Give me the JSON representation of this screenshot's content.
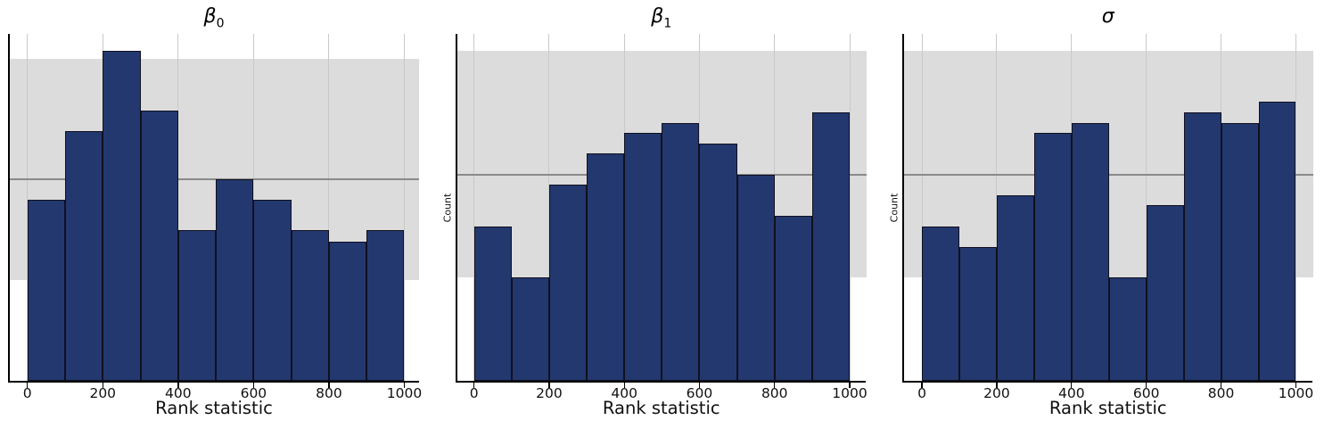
{
  "figure": {
    "xlabel": "Rank statistic",
    "ylabel": "Count",
    "xtick_labels": [
      "0",
      "200",
      "400",
      "600",
      "800",
      "1000"
    ],
    "colors": {
      "bar_fill": "#23386e",
      "bar_edge": "#101020",
      "band": "#dcdcdc",
      "expected_line": "#8a8a8a",
      "grid": "#c9c9c9",
      "axis": "#000000",
      "text": "#111111"
    }
  },
  "chart_data": [
    {
      "type": "bar",
      "subtype": "histogram",
      "title": "β₀",
      "title_base": "β",
      "title_sub": "0",
      "xlabel": "Rank statistic",
      "ylabel": "Count",
      "ylabel_visible": false,
      "bin_edges": [
        0,
        100,
        200,
        300,
        400,
        500,
        600,
        700,
        800,
        900,
        1000
      ],
      "values": [
        90,
        124,
        164,
        134,
        75,
        100,
        90,
        75,
        69,
        75
      ],
      "expected_count": 100,
      "band_low": 50,
      "band_high": 160,
      "xlim": [
        0,
        1000
      ],
      "ylim": [
        0,
        172.2
      ],
      "xticks": [
        0,
        200,
        400,
        600,
        800,
        1000
      ],
      "grid": "vertical-at-xticks",
      "legend": "none"
    },
    {
      "type": "bar",
      "subtype": "histogram",
      "title": "β₁",
      "title_base": "β",
      "title_sub": "1",
      "xlabel": "Rank statistic",
      "ylabel": "Count",
      "ylabel_visible": true,
      "bin_edges": [
        0,
        100,
        200,
        300,
        400,
        500,
        600,
        700,
        800,
        900,
        1000
      ],
      "values": [
        75,
        50,
        95,
        110,
        120,
        125,
        115,
        100,
        80,
        130
      ],
      "expected_count": 100,
      "band_low": 50,
      "band_high": 160,
      "xlim": [
        0,
        1000
      ],
      "ylim": [
        0,
        168
      ],
      "xticks": [
        0,
        200,
        400,
        600,
        800,
        1000
      ],
      "grid": "vertical-at-xticks",
      "legend": "none"
    },
    {
      "type": "bar",
      "subtype": "histogram",
      "title": "σ",
      "title_base": "σ",
      "title_sub": "",
      "xlabel": "Rank statistic",
      "ylabel": "Count",
      "ylabel_visible": true,
      "bin_edges": [
        0,
        100,
        200,
        300,
        400,
        500,
        600,
        700,
        800,
        900,
        1000
      ],
      "values": [
        75,
        65,
        90,
        120,
        125,
        50,
        85,
        130,
        125,
        135
      ],
      "expected_count": 100,
      "band_low": 50,
      "band_high": 160,
      "xlim": [
        0,
        1000
      ],
      "ylim": [
        0,
        168
      ],
      "xticks": [
        0,
        200,
        400,
        600,
        800,
        1000
      ],
      "grid": "vertical-at-xticks",
      "legend": "none"
    }
  ]
}
